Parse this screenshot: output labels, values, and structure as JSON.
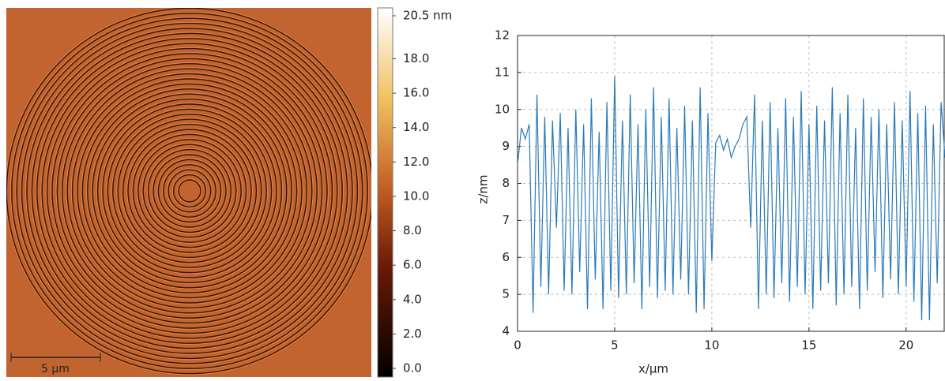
{
  "chart_data": [
    {
      "type": "image",
      "scalebar_label": "5 µm",
      "clim": [
        0,
        20.5
      ],
      "cticks": [
        {
          "value": 0,
          "label": "0.0"
        },
        {
          "value": 2,
          "label": "2.0"
        },
        {
          "value": 4,
          "label": "4.0"
        },
        {
          "value": 6,
          "label": "6.0"
        },
        {
          "value": 8,
          "label": "8.0"
        },
        {
          "value": 10,
          "label": "10.0"
        },
        {
          "value": 12,
          "label": "12.0"
        },
        {
          "value": 14,
          "label": "14.0"
        },
        {
          "value": 16,
          "label": "16.0"
        },
        {
          "value": 18,
          "label": "18.0"
        },
        {
          "value": 20.5,
          "label": "20.5 nm"
        }
      ]
    },
    {
      "type": "line",
      "xlabel": "x/µm",
      "ylabel": "z/nm",
      "xlim": [
        0,
        22
      ],
      "ylim": [
        4,
        12
      ],
      "xticks": [
        0,
        5,
        10,
        15,
        20
      ],
      "yticks": [
        4,
        5,
        6,
        7,
        8,
        9,
        10,
        11,
        12
      ],
      "grid": true,
      "x": [
        0,
        0.2,
        0.4,
        0.6,
        0.8,
        1.0,
        1.2,
        1.4,
        1.6,
        1.8,
        2.0,
        2.2,
        2.4,
        2.6,
        2.8,
        3.0,
        3.2,
        3.4,
        3.6,
        3.8,
        4.0,
        4.2,
        4.4,
        4.6,
        4.8,
        5.0,
        5.2,
        5.4,
        5.6,
        5.8,
        6.0,
        6.2,
        6.4,
        6.6,
        6.8,
        7.0,
        7.2,
        7.4,
        7.6,
        7.8,
        8.0,
        8.2,
        8.4,
        8.6,
        8.8,
        9.0,
        9.2,
        9.4,
        9.6,
        9.8,
        10.0,
        10.2,
        10.4,
        10.6,
        10.8,
        11.0,
        11.2,
        11.4,
        11.6,
        11.8,
        12.0,
        12.2,
        12.4,
        12.6,
        12.8,
        13.0,
        13.2,
        13.4,
        13.6,
        13.8,
        14.0,
        14.2,
        14.4,
        14.6,
        14.8,
        15.0,
        15.2,
        15.4,
        15.6,
        15.8,
        16.0,
        16.2,
        16.4,
        16.6,
        16.8,
        17.0,
        17.2,
        17.4,
        17.6,
        17.8,
        18.0,
        18.2,
        18.4,
        18.6,
        18.8,
        19.0,
        19.2,
        19.4,
        19.6,
        19.8,
        20.0,
        20.2,
        20.4,
        20.6,
        20.8,
        21.0,
        21.2,
        21.4,
        21.6,
        21.8,
        22.0
      ],
      "series": [
        {
          "color": "#2a7ab9",
          "values": [
            8.5,
            9.5,
            9.2,
            9.6,
            4.5,
            10.4,
            5.2,
            9.8,
            5.0,
            9.7,
            6.8,
            9.9,
            5.1,
            9.5,
            5.0,
            10.0,
            5.6,
            9.6,
            4.6,
            10.3,
            5.4,
            9.4,
            4.6,
            10.2,
            5.1,
            10.9,
            4.9,
            9.7,
            5.0,
            10.4,
            5.3,
            9.6,
            4.6,
            10.0,
            5.2,
            10.6,
            4.9,
            9.8,
            5.1,
            10.3,
            5.0,
            9.5,
            5.4,
            10.1,
            5.0,
            9.7,
            4.5,
            10.6,
            4.6,
            9.9,
            5.9,
            9.1,
            9.3,
            8.9,
            9.2,
            8.7,
            9.0,
            9.2,
            9.6,
            9.8,
            6.8,
            10.4,
            4.6,
            9.7,
            5.0,
            10.2,
            4.9,
            9.5,
            5.3,
            10.3,
            4.8,
            9.8,
            5.2,
            10.5,
            5.0,
            9.6,
            4.6,
            10.1,
            5.1,
            9.7,
            5.3,
            10.6,
            4.7,
            9.9,
            5.0,
            10.4,
            5.2,
            9.5,
            4.6,
            10.3,
            5.1,
            9.8,
            5.6,
            10.0,
            4.9,
            9.6,
            5.4,
            10.2,
            5.0,
            9.7,
            5.2,
            10.5,
            4.8,
            9.9,
            4.3,
            10.1,
            4.3,
            9.6,
            5.3,
            10.2,
            8.7
          ]
        }
      ]
    }
  ]
}
